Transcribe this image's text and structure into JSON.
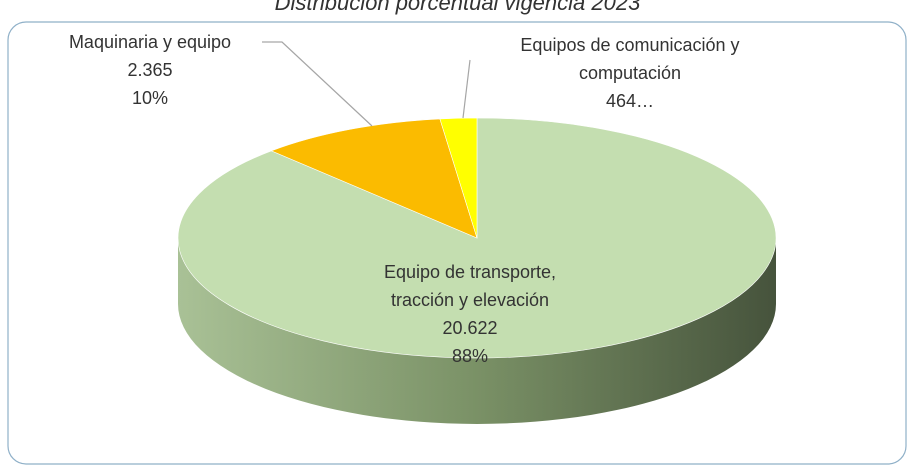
{
  "chart_data": {
    "type": "pie3d",
    "title": "Distribución porcentual vigencia 2023",
    "categories": [
      "Equipo de transporte, tracción y elevación",
      "Maquinaria y equipo",
      "Equipos de comunicación y computación"
    ],
    "values": [
      20622,
      2365,
      464
    ],
    "value_labels": [
      "20.622",
      "2.365",
      "464…"
    ],
    "percentages": [
      88,
      10,
      null
    ],
    "percentage_labels": [
      "88%",
      "10%",
      null
    ],
    "colors": [
      "#c4deb0",
      "#fbbb00",
      "#ffff00"
    ]
  }
}
